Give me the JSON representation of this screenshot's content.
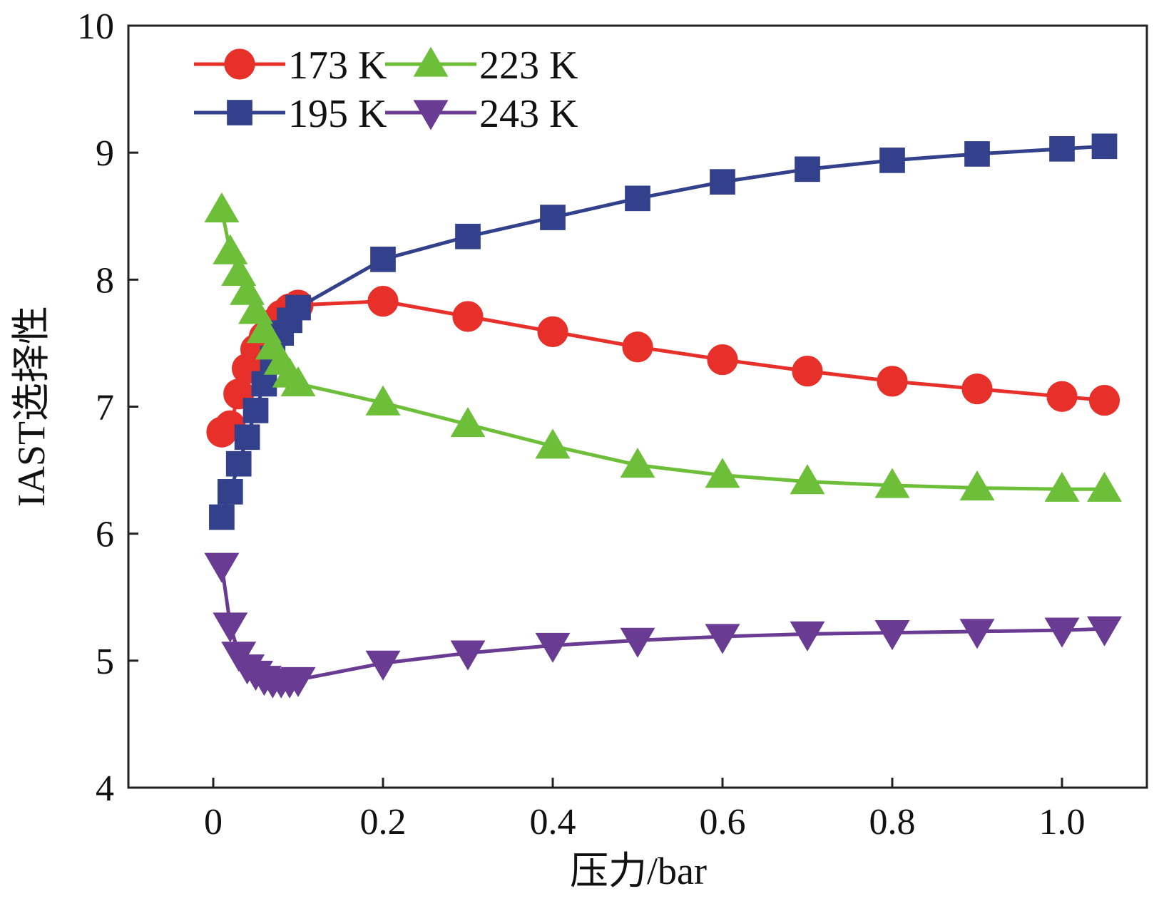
{
  "chart_data": {
    "type": "line",
    "title": "",
    "xlabel": "压力/bar",
    "ylabel": "IAST选择性",
    "xlim": [
      -0.1,
      1.1
    ],
    "ylim": [
      4,
      10
    ],
    "xticks": [
      0,
      0.2,
      0.4,
      0.6,
      0.8,
      1.0
    ],
    "xtick_labels": [
      "0",
      "0.2",
      "0.4",
      "0.6",
      "0.8",
      "1.0"
    ],
    "yticks": [
      4,
      5,
      6,
      7,
      8,
      9,
      10
    ],
    "ytick_labels": [
      "4",
      "5",
      "6",
      "7",
      "8",
      "9",
      "10"
    ],
    "grid": false,
    "legend_position": "top-left",
    "series": [
      {
        "name": "173 K",
        "color": "#e8302a",
        "marker": "circle",
        "x": [
          0.01,
          0.02,
          0.03,
          0.04,
          0.05,
          0.06,
          0.07,
          0.08,
          0.09,
          0.1,
          0.2,
          0.3,
          0.4,
          0.5,
          0.6,
          0.7,
          0.8,
          0.9,
          1.0,
          1.05
        ],
        "y": [
          6.8,
          6.85,
          7.1,
          7.3,
          7.45,
          7.55,
          7.65,
          7.72,
          7.77,
          7.8,
          7.83,
          7.71,
          7.59,
          7.47,
          7.37,
          7.28,
          7.2,
          7.14,
          7.08,
          7.05
        ]
      },
      {
        "name": "195 K",
        "color": "#33418c",
        "marker": "square",
        "x": [
          0.01,
          0.02,
          0.03,
          0.04,
          0.05,
          0.06,
          0.07,
          0.08,
          0.09,
          0.1,
          0.2,
          0.3,
          0.4,
          0.5,
          0.6,
          0.7,
          0.8,
          0.9,
          1.0,
          1.05
        ],
        "y": [
          6.13,
          6.33,
          6.55,
          6.76,
          6.97,
          7.18,
          7.38,
          7.58,
          7.68,
          7.78,
          8.16,
          8.34,
          8.49,
          8.64,
          8.77,
          8.87,
          8.94,
          8.99,
          9.03,
          9.05
        ]
      },
      {
        "name": "223 K",
        "color": "#6dbf3a",
        "marker": "triangle-up",
        "x": [
          0.01,
          0.02,
          0.03,
          0.04,
          0.05,
          0.06,
          0.07,
          0.08,
          0.09,
          0.1,
          0.2,
          0.3,
          0.4,
          0.5,
          0.6,
          0.7,
          0.8,
          0.9,
          1.0,
          1.05
        ],
        "y": [
          8.55,
          8.22,
          8.05,
          7.9,
          7.75,
          7.6,
          7.47,
          7.35,
          7.25,
          7.18,
          7.03,
          6.86,
          6.69,
          6.54,
          6.46,
          6.41,
          6.38,
          6.36,
          6.35,
          6.35
        ]
      },
      {
        "name": "243 K",
        "color": "#6a3b93",
        "marker": "triangle-down",
        "x": [
          0.01,
          0.02,
          0.03,
          0.04,
          0.05,
          0.06,
          0.07,
          0.08,
          0.09,
          0.1,
          0.2,
          0.3,
          0.4,
          0.5,
          0.6,
          0.7,
          0.8,
          0.9,
          1.0,
          1.05
        ],
        "y": [
          5.75,
          5.28,
          5.05,
          4.95,
          4.9,
          4.86,
          4.84,
          4.84,
          4.84,
          4.85,
          4.98,
          5.06,
          5.12,
          5.16,
          5.19,
          5.21,
          5.22,
          5.23,
          5.24,
          5.25
        ]
      }
    ]
  }
}
